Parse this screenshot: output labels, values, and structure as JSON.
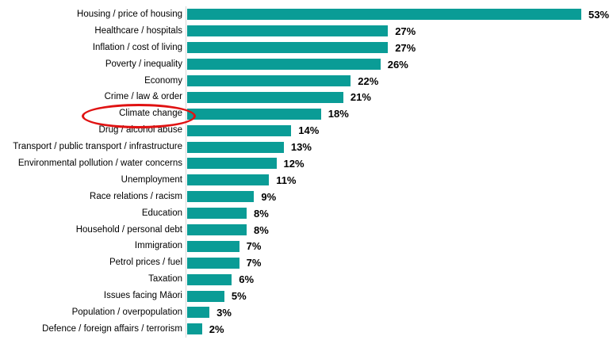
{
  "chart_data": {
    "type": "bar",
    "orientation": "horizontal",
    "title": "",
    "xlabel": "",
    "ylabel": "",
    "grid": false,
    "legend_position": "none",
    "xlim": [
      0,
      55
    ],
    "bar_color": "#0a9c96",
    "axis_line_color": "#d6d6d6",
    "categories": [
      "Housing / price of housing",
      "Healthcare / hospitals",
      "Inflation / cost of living",
      "Poverty / inequality",
      "Economy",
      "Crime / law & order",
      "Climate change",
      "Drug / alcohol abuse",
      "Transport / public transport / infrastructure",
      "Environmental pollution / water concerns",
      "Unemployment",
      "Race relations / racism",
      "Education",
      "Household / personal debt",
      "Immigration",
      "Petrol prices / fuel",
      "Taxation",
      "Issues facing Māori",
      "Population / overpopulation",
      "Defence / foreign affairs / terrorism"
    ],
    "values": [
      53,
      27,
      27,
      26,
      22,
      21,
      18,
      14,
      13,
      12,
      11,
      9,
      8,
      8,
      7,
      7,
      6,
      5,
      3,
      2
    ],
    "value_labels": [
      "53%",
      "27%",
      "27%",
      "26%",
      "22%",
      "21%",
      "18%",
      "14%",
      "13%",
      "12%",
      "11%",
      "9%",
      "8%",
      "8%",
      "7%",
      "7%",
      "6%",
      "5%",
      "3%",
      "2%"
    ],
    "annotation": {
      "type": "ellipse",
      "target_category": "Climate change",
      "color": "#e01212"
    }
  }
}
